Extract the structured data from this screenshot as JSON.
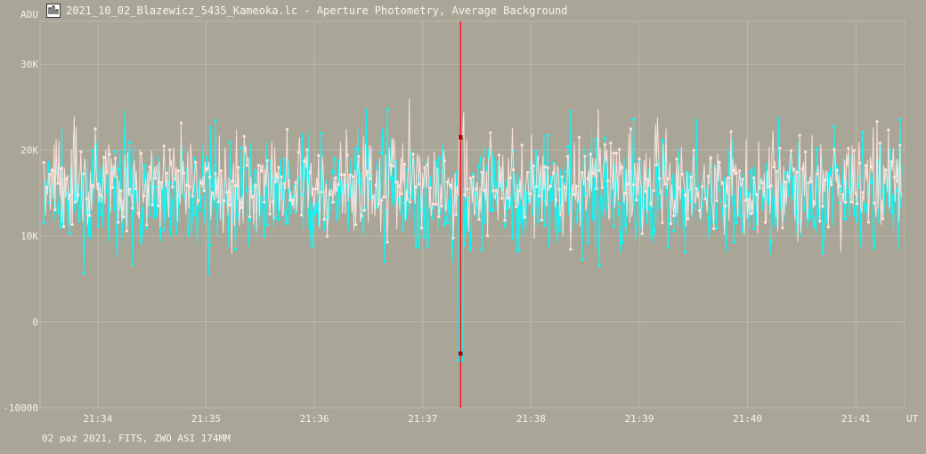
{
  "window": {
    "title": "2021_10_02_Blazewicz_5435_Kameoka.lc - Aperture Photometry, Average Background",
    "icon": "lightcurve-app-icon"
  },
  "footer": {
    "info": "02 paź 2021, FITS, ZWO ASI 174MM"
  },
  "colors": {
    "background": "#a9a597",
    "grid": "#bcb9ad",
    "series_a": "#00ffff",
    "series_b": "#ffe4de",
    "cursor": "#ff0000",
    "text": "#f4f2ea"
  },
  "chart_data": {
    "type": "line",
    "ylabel": "ADU",
    "xlabel": "UT",
    "ylim": [
      -10000,
      35000
    ],
    "xlim": [
      "21:33:28",
      "21:41:27"
    ],
    "x_ticks": [
      "21:34",
      "21:35",
      "21:36",
      "21:37",
      "21:38",
      "21:39",
      "21:40",
      "21:41"
    ],
    "y_ticks": [
      {
        "value": 30000,
        "label": "30K"
      },
      {
        "value": 20000,
        "label": "20K"
      },
      {
        "value": 10000,
        "label": "10K"
      },
      {
        "value": 0,
        "label": "0"
      },
      {
        "value": -10000,
        "label": "-10000"
      }
    ],
    "grid": true,
    "cursor_time": "21:37:21",
    "cursor_markers": [
      21500,
      -3700
    ],
    "series": [
      {
        "color": "#00ffff",
        "mean": 14500,
        "spread": 3800,
        "x": [
          "21:33:30",
          "21:34:00",
          "21:34:30",
          "21:35:00",
          "21:35:30",
          "21:36:00",
          "21:36:30",
          "21:37:00",
          "21:37:20",
          "21:37:30",
          "21:38:00",
          "21:38:30",
          "21:39:00",
          "21:39:30",
          "21:40:00",
          "21:40:30",
          "21:41:00",
          "21:41:25"
        ],
        "values": [
          15000,
          14000,
          15500,
          13500,
          14500,
          15000,
          14000,
          15500,
          -4500,
          15000,
          14000,
          15000,
          14500,
          15500,
          14000,
          15000,
          14500,
          15000
        ]
      },
      {
        "color": "#ffe4de",
        "mean": 16000,
        "spread": 3500,
        "x": [
          "21:33:30",
          "21:34:00",
          "21:34:30",
          "21:35:00",
          "21:35:30",
          "21:36:00",
          "21:36:30",
          "21:37:00",
          "21:37:20",
          "21:37:30",
          "21:38:00",
          "21:38:30",
          "21:39:00",
          "21:39:30",
          "21:40:00",
          "21:40:30",
          "21:41:00",
          "21:41:25"
        ],
        "values": [
          16500,
          15500,
          16000,
          15000,
          16500,
          16000,
          15500,
          17000,
          21500,
          16000,
          15500,
          16500,
          16000,
          17000,
          15500,
          16500,
          16000,
          17000
        ]
      }
    ]
  }
}
